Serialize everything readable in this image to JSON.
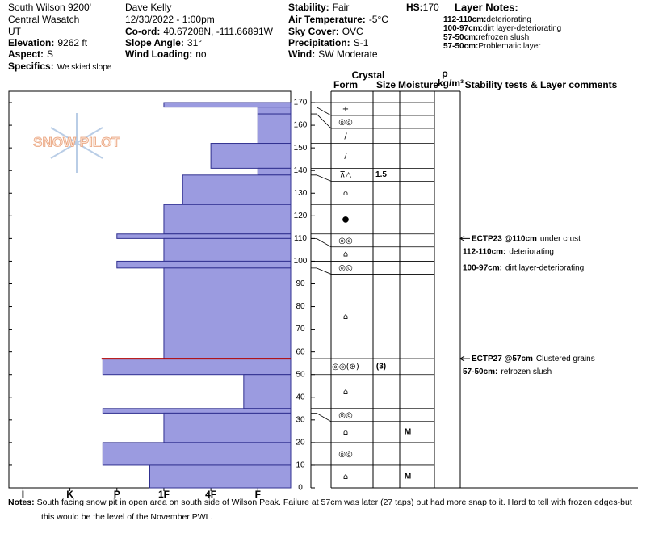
{
  "header": {
    "location": "South Wilson 9200'",
    "range": "Central Wasatch",
    "state": "UT",
    "elevation": {
      "label": "Elevation:",
      "value": "9262 ft"
    },
    "aspect": {
      "label": "Aspect:",
      "value": "S"
    },
    "specifics": {
      "label": "Specifics:",
      "value": "We skied slope"
    },
    "observer": "Dave Kelly",
    "datetime": "12/30/2022 - 1:00pm",
    "coord": {
      "label": "Co-ord:",
      "value": "40.67208N, -111.66891W"
    },
    "slope_angle": {
      "label": "Slope Angle:",
      "value": "31°"
    },
    "wind_loading": {
      "label": "Wind Loading:",
      "value": "no"
    },
    "stability": {
      "label": "Stability:",
      "value": "Fair"
    },
    "air_temp": {
      "label": "Air Temperature:",
      "value": "-5°C"
    },
    "sky_cover": {
      "label": "Sky Cover:",
      "value": "OVC"
    },
    "precipitation": {
      "label": "Precipitation:",
      "value": "S-1"
    },
    "wind": {
      "label": "Wind:",
      "value": "SW Moderate"
    },
    "hs": {
      "label": "HS:",
      "value": "170"
    },
    "layer_notes": {
      "title": "Layer Notes:",
      "items": [
        {
          "label": "112-110cm:",
          "value": "deteriorating"
        },
        {
          "label": "100-97cm:",
          "value": "dirt layer-deteriorating"
        },
        {
          "label": "57-50cm:",
          "value": "refrozen slush"
        },
        {
          "label": "57-50cm:",
          "value": "Problematic layer"
        }
      ]
    }
  },
  "watermark": "SNOW PILOT",
  "columns": {
    "crystal": "Crystal",
    "form": "Form",
    "size": "Size",
    "moisture": "Moisture",
    "rho": "ρ",
    "density_unit": "kg/m³",
    "comments": "Stability tests & Layer comments"
  },
  "chart_data": {
    "type": "bar",
    "orientation": "horizontal",
    "color": "#9b9be0",
    "edge_color": "#303090",
    "ylim": [
      0,
      175
    ],
    "yticks": [
      0,
      10,
      20,
      30,
      40,
      50,
      60,
      70,
      80,
      90,
      100,
      110,
      120,
      130,
      140,
      150,
      160,
      170
    ],
    "xlim": [
      6.3,
      0.3
    ],
    "xticks": [
      {
        "value": 6,
        "label": "I"
      },
      {
        "value": 5,
        "label": "K"
      },
      {
        "value": 4,
        "label": "P"
      },
      {
        "value": 3,
        "label": "1F"
      },
      {
        "value": 2,
        "label": "4F"
      },
      {
        "value": 1,
        "label": "F"
      }
    ],
    "tops": [
      170,
      168,
      165,
      152,
      141,
      138,
      125,
      112,
      110,
      100,
      97,
      57,
      50,
      35,
      33,
      20,
      10
    ],
    "bottoms": [
      168,
      165,
      152,
      141,
      138,
      125,
      112,
      110,
      100,
      97,
      57,
      50,
      35,
      33,
      20,
      10,
      0
    ],
    "values": [
      3,
      1,
      1,
      2,
      1,
      2.6,
      3,
      4,
      3,
      4,
      3,
      4.3,
      1.3,
      4.3,
      3,
      4.3,
      3.3
    ],
    "forms": [
      "+",
      "◎◎",
      "/",
      "/",
      "⊼△",
      "⌂",
      "●",
      "◎◎",
      "⌂",
      "◎◎",
      "⌂",
      "◎◎(⊛)",
      "⌂",
      "◎◎",
      "⌂",
      "◎◎",
      "⌂"
    ],
    "sizes": [
      null,
      null,
      null,
      null,
      1.5,
      null,
      null,
      null,
      null,
      null,
      null,
      "(3)",
      null,
      null,
      null,
      null,
      null
    ],
    "moisture": [
      null,
      null,
      null,
      null,
      null,
      null,
      null,
      null,
      null,
      null,
      null,
      null,
      null,
      null,
      "M",
      null,
      "M"
    ],
    "comment_labels": [
      null,
      null,
      null,
      null,
      null,
      null,
      null,
      "112-110cm:",
      null,
      "100-97cm:",
      null,
      "57-50cm:",
      null,
      null,
      null,
      null,
      null
    ],
    "comments": [
      null,
      null,
      null,
      null,
      null,
      null,
      null,
      "deteriorating",
      null,
      "dirt layer-deteriorating",
      null,
      "refrozen slush",
      null,
      null,
      null,
      null,
      null
    ],
    "critical_depth": 57,
    "critical_color": "#b00000",
    "tests": [
      {
        "depth": 110,
        "code": "ECTP23 @110cm",
        "note": "under crust"
      },
      {
        "depth": 57,
        "code": "ECTP27 @57cm",
        "note": "Clustered grains"
      }
    ]
  },
  "notes": {
    "label": "Notes:",
    "text": "South facing snow pit in open area on south side of Wilson Peak. Failure at 57cm was later (27 taps) but had more snap to it.  Hard to tell with frozen edges-but this would be the level of the November PWL."
  }
}
